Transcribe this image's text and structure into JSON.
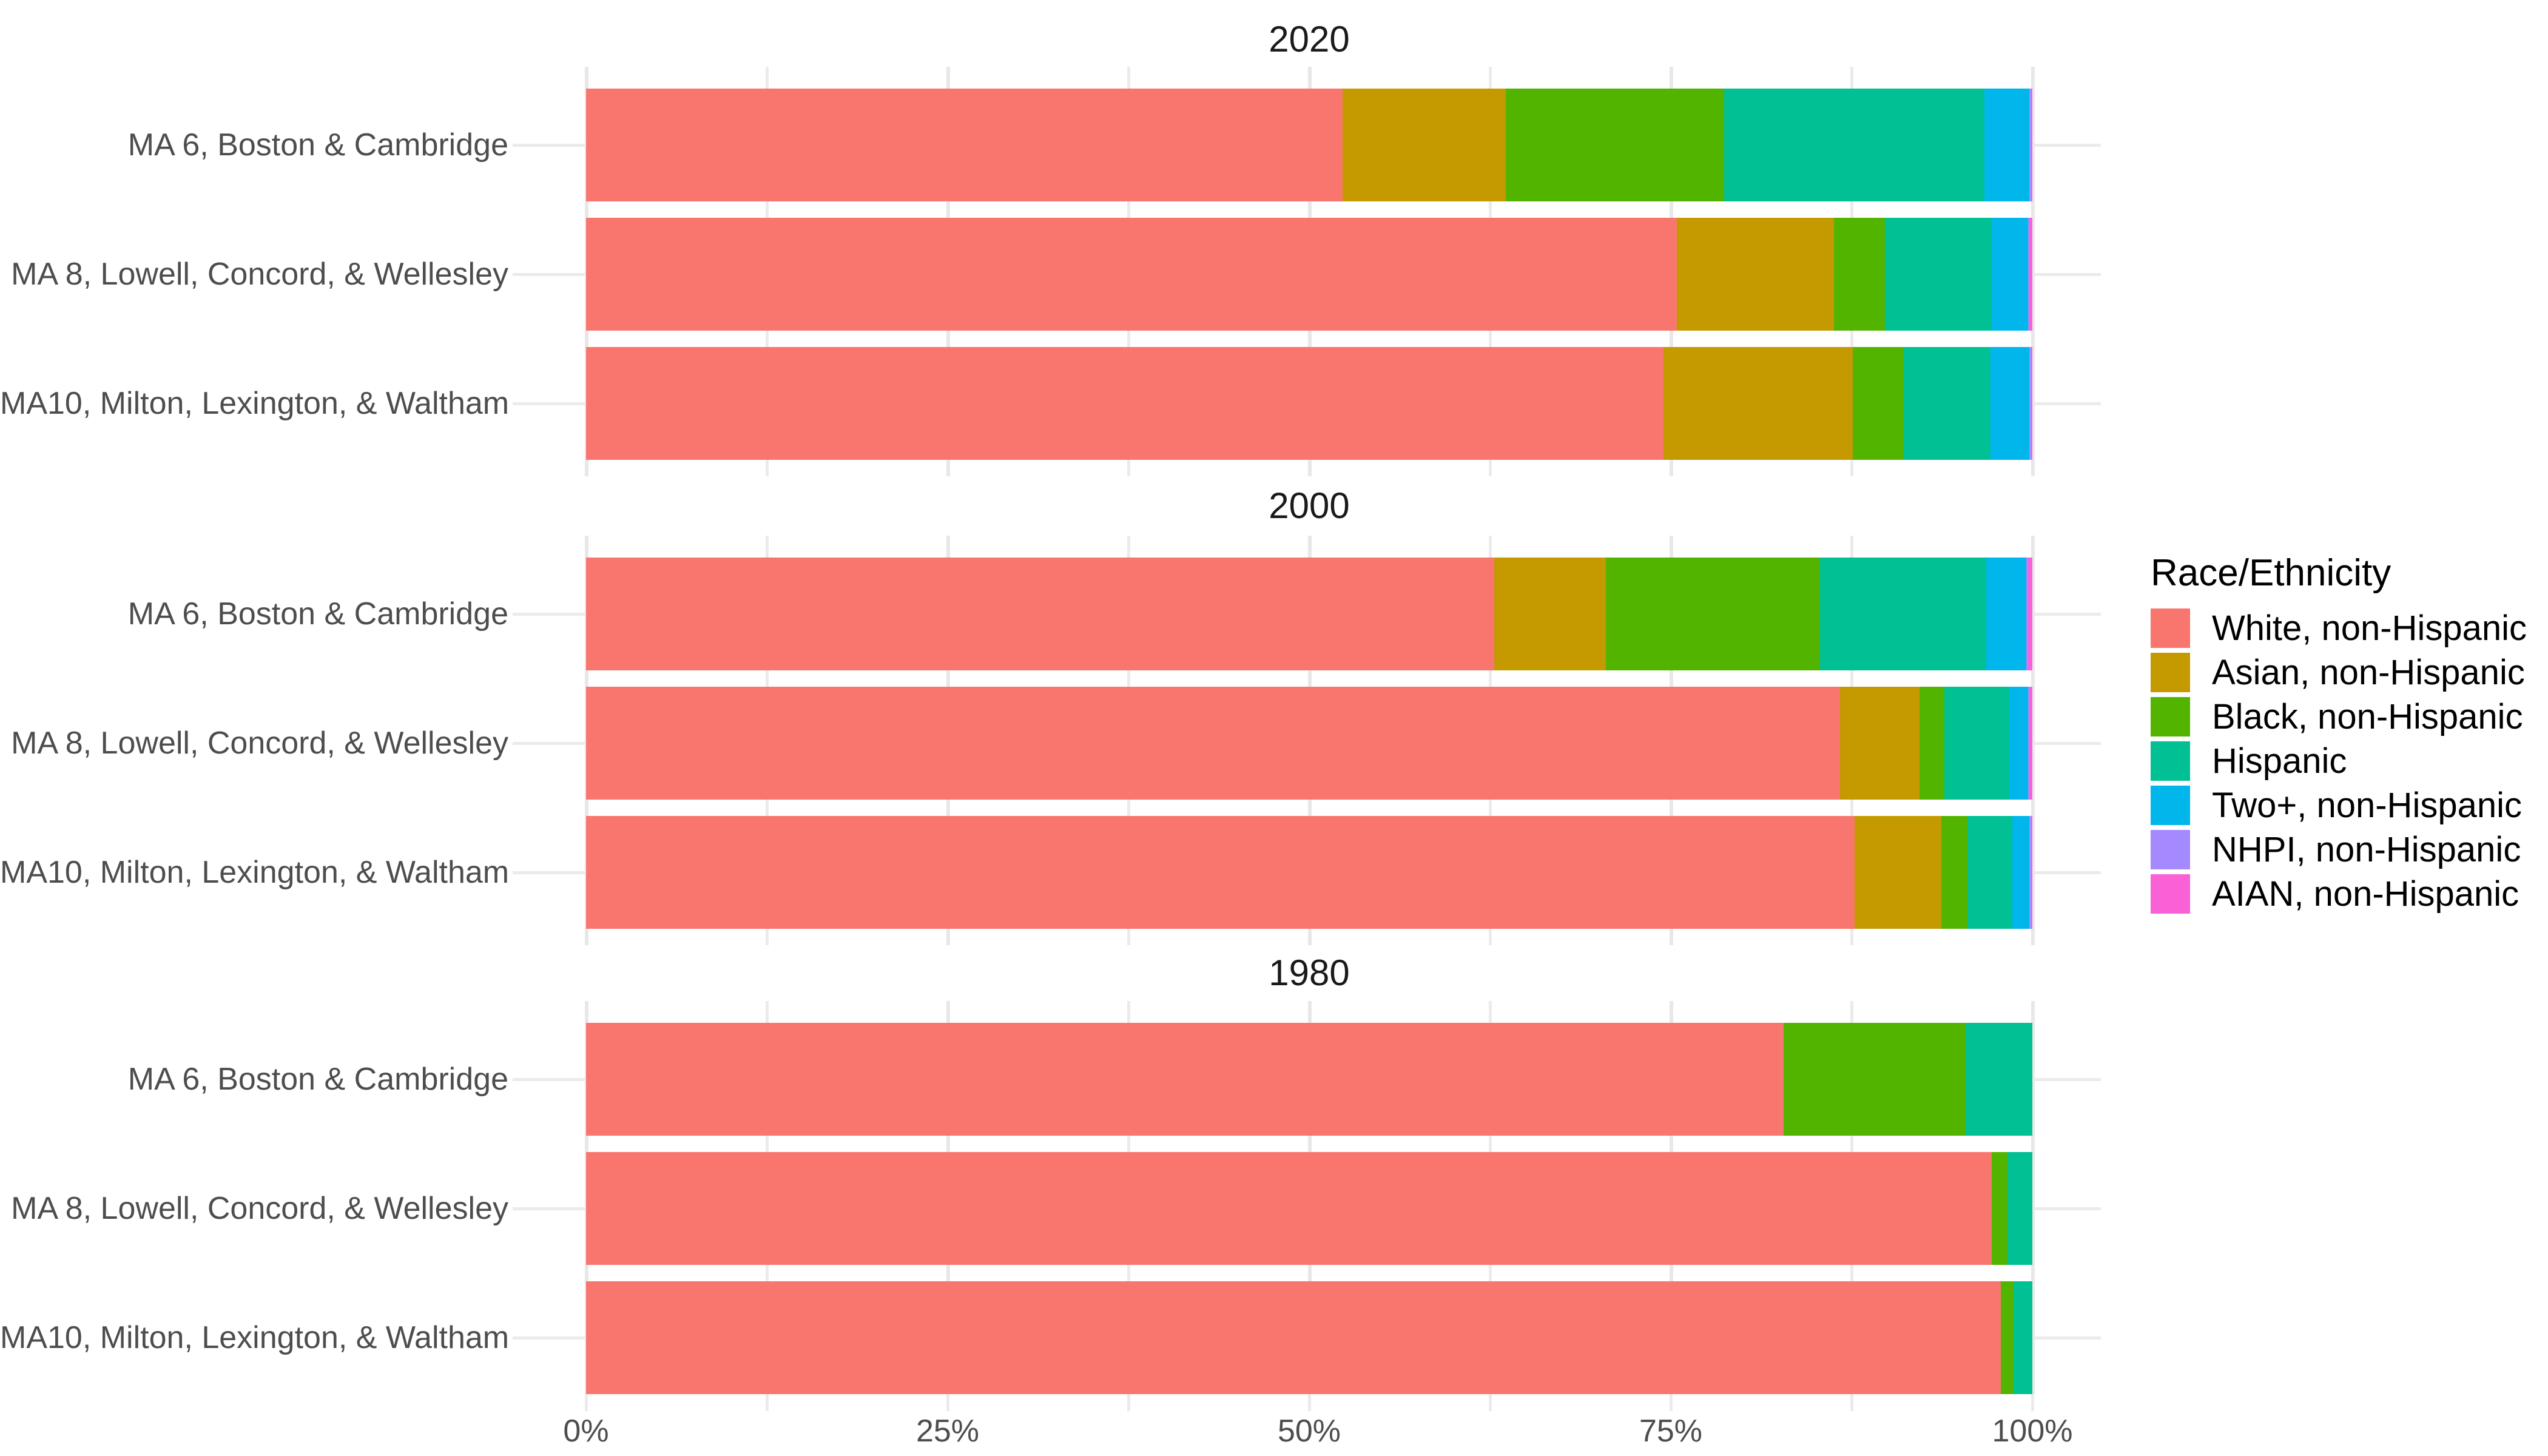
{
  "legend": {
    "title": "Race/Ethnicity",
    "items": [
      {
        "label": "White, non-Hispanic",
        "color": "#F8766D"
      },
      {
        "label": "Asian, non-Hispanic",
        "color": "#C49A00"
      },
      {
        "label": "Black, non-Hispanic",
        "color": "#53B400"
      },
      {
        "label": "Hispanic",
        "color": "#00C094"
      },
      {
        "label": "Two+, non-Hispanic",
        "color": "#00B6EB"
      },
      {
        "label": "NHPI, non-Hispanic",
        "color": "#A58AFF"
      },
      {
        "label": "AIAN, non-Hispanic",
        "color": "#FB61D7"
      }
    ]
  },
  "axis": {
    "x_tick_labels": [
      "0%",
      "25%",
      "50%",
      "75%",
      "100%"
    ],
    "x_minor_step_pct": 12.5,
    "gridline_color": "#EBEBEB",
    "text_color": "#4D4D4D"
  },
  "chart_data": {
    "type": "bar",
    "subtype": "horizontal-stacked-100pct",
    "facets_label": [
      "2020",
      "2000",
      "1980"
    ],
    "categories": [
      "MA 6, Boston & Cambridge",
      "MA 8, Lowell, Concord, & Wellesley",
      "MA10, Milton, Lexington, & Waltham"
    ],
    "series_names": [
      "White, non-Hispanic",
      "Asian, non-Hispanic",
      "Black, non-Hispanic",
      "Hispanic",
      "Two+, non-Hispanic",
      "NHPI, non-Hispanic",
      "AIAN, non-Hispanic"
    ],
    "xlim": [
      0,
      100
    ],
    "grid": "vertical, every 12.5%, labels every 25%",
    "legend_position": "right",
    "panels": [
      {
        "year": "2020",
        "bars": [
          {
            "label": "MA 6, Boston & Cambridge",
            "values": [
              52.3,
              11.3,
              15.1,
              18.0,
              3.1,
              0.1,
              0.1
            ]
          },
          {
            "label": "MA 8, Lowell, Concord, & Wellesley",
            "values": [
              75.4,
              10.9,
              3.5,
              7.4,
              2.5,
              0.1,
              0.2
            ]
          },
          {
            "label": "MA10, Milton, Lexington, & Waltham",
            "values": [
              74.5,
              13.1,
              3.5,
              6.0,
              2.7,
              0.1,
              0.1
            ]
          }
        ]
      },
      {
        "year": "2000",
        "bars": [
          {
            "label": "MA 6, Boston & Cambridge",
            "values": [
              62.8,
              7.7,
              14.8,
              11.5,
              2.8,
              0.1,
              0.3
            ]
          },
          {
            "label": "MA 8, Lowell, Concord, & Wellesley",
            "values": [
              86.7,
              5.5,
              1.7,
              4.5,
              1.3,
              0.1,
              0.2
            ]
          },
          {
            "label": "MA10, Milton, Lexington, & Waltham",
            "values": [
              87.7,
              6.0,
              1.8,
              3.1,
              1.2,
              0.1,
              0.1
            ]
          }
        ]
      },
      {
        "year": "1980",
        "bars": [
          {
            "label": "MA 6, Boston & Cambridge",
            "values": [
              82.8,
              0.0,
              12.6,
              4.6,
              0.0,
              0.0,
              0.0
            ]
          },
          {
            "label": "MA 8, Lowell, Concord, & Wellesley",
            "values": [
              97.2,
              0.0,
              1.1,
              1.7,
              0.0,
              0.0,
              0.0
            ]
          },
          {
            "label": "MA10, Milton, Lexington, & Waltham",
            "values": [
              97.8,
              0.0,
              0.9,
              1.3,
              0.0,
              0.0,
              0.0
            ]
          }
        ]
      }
    ]
  }
}
